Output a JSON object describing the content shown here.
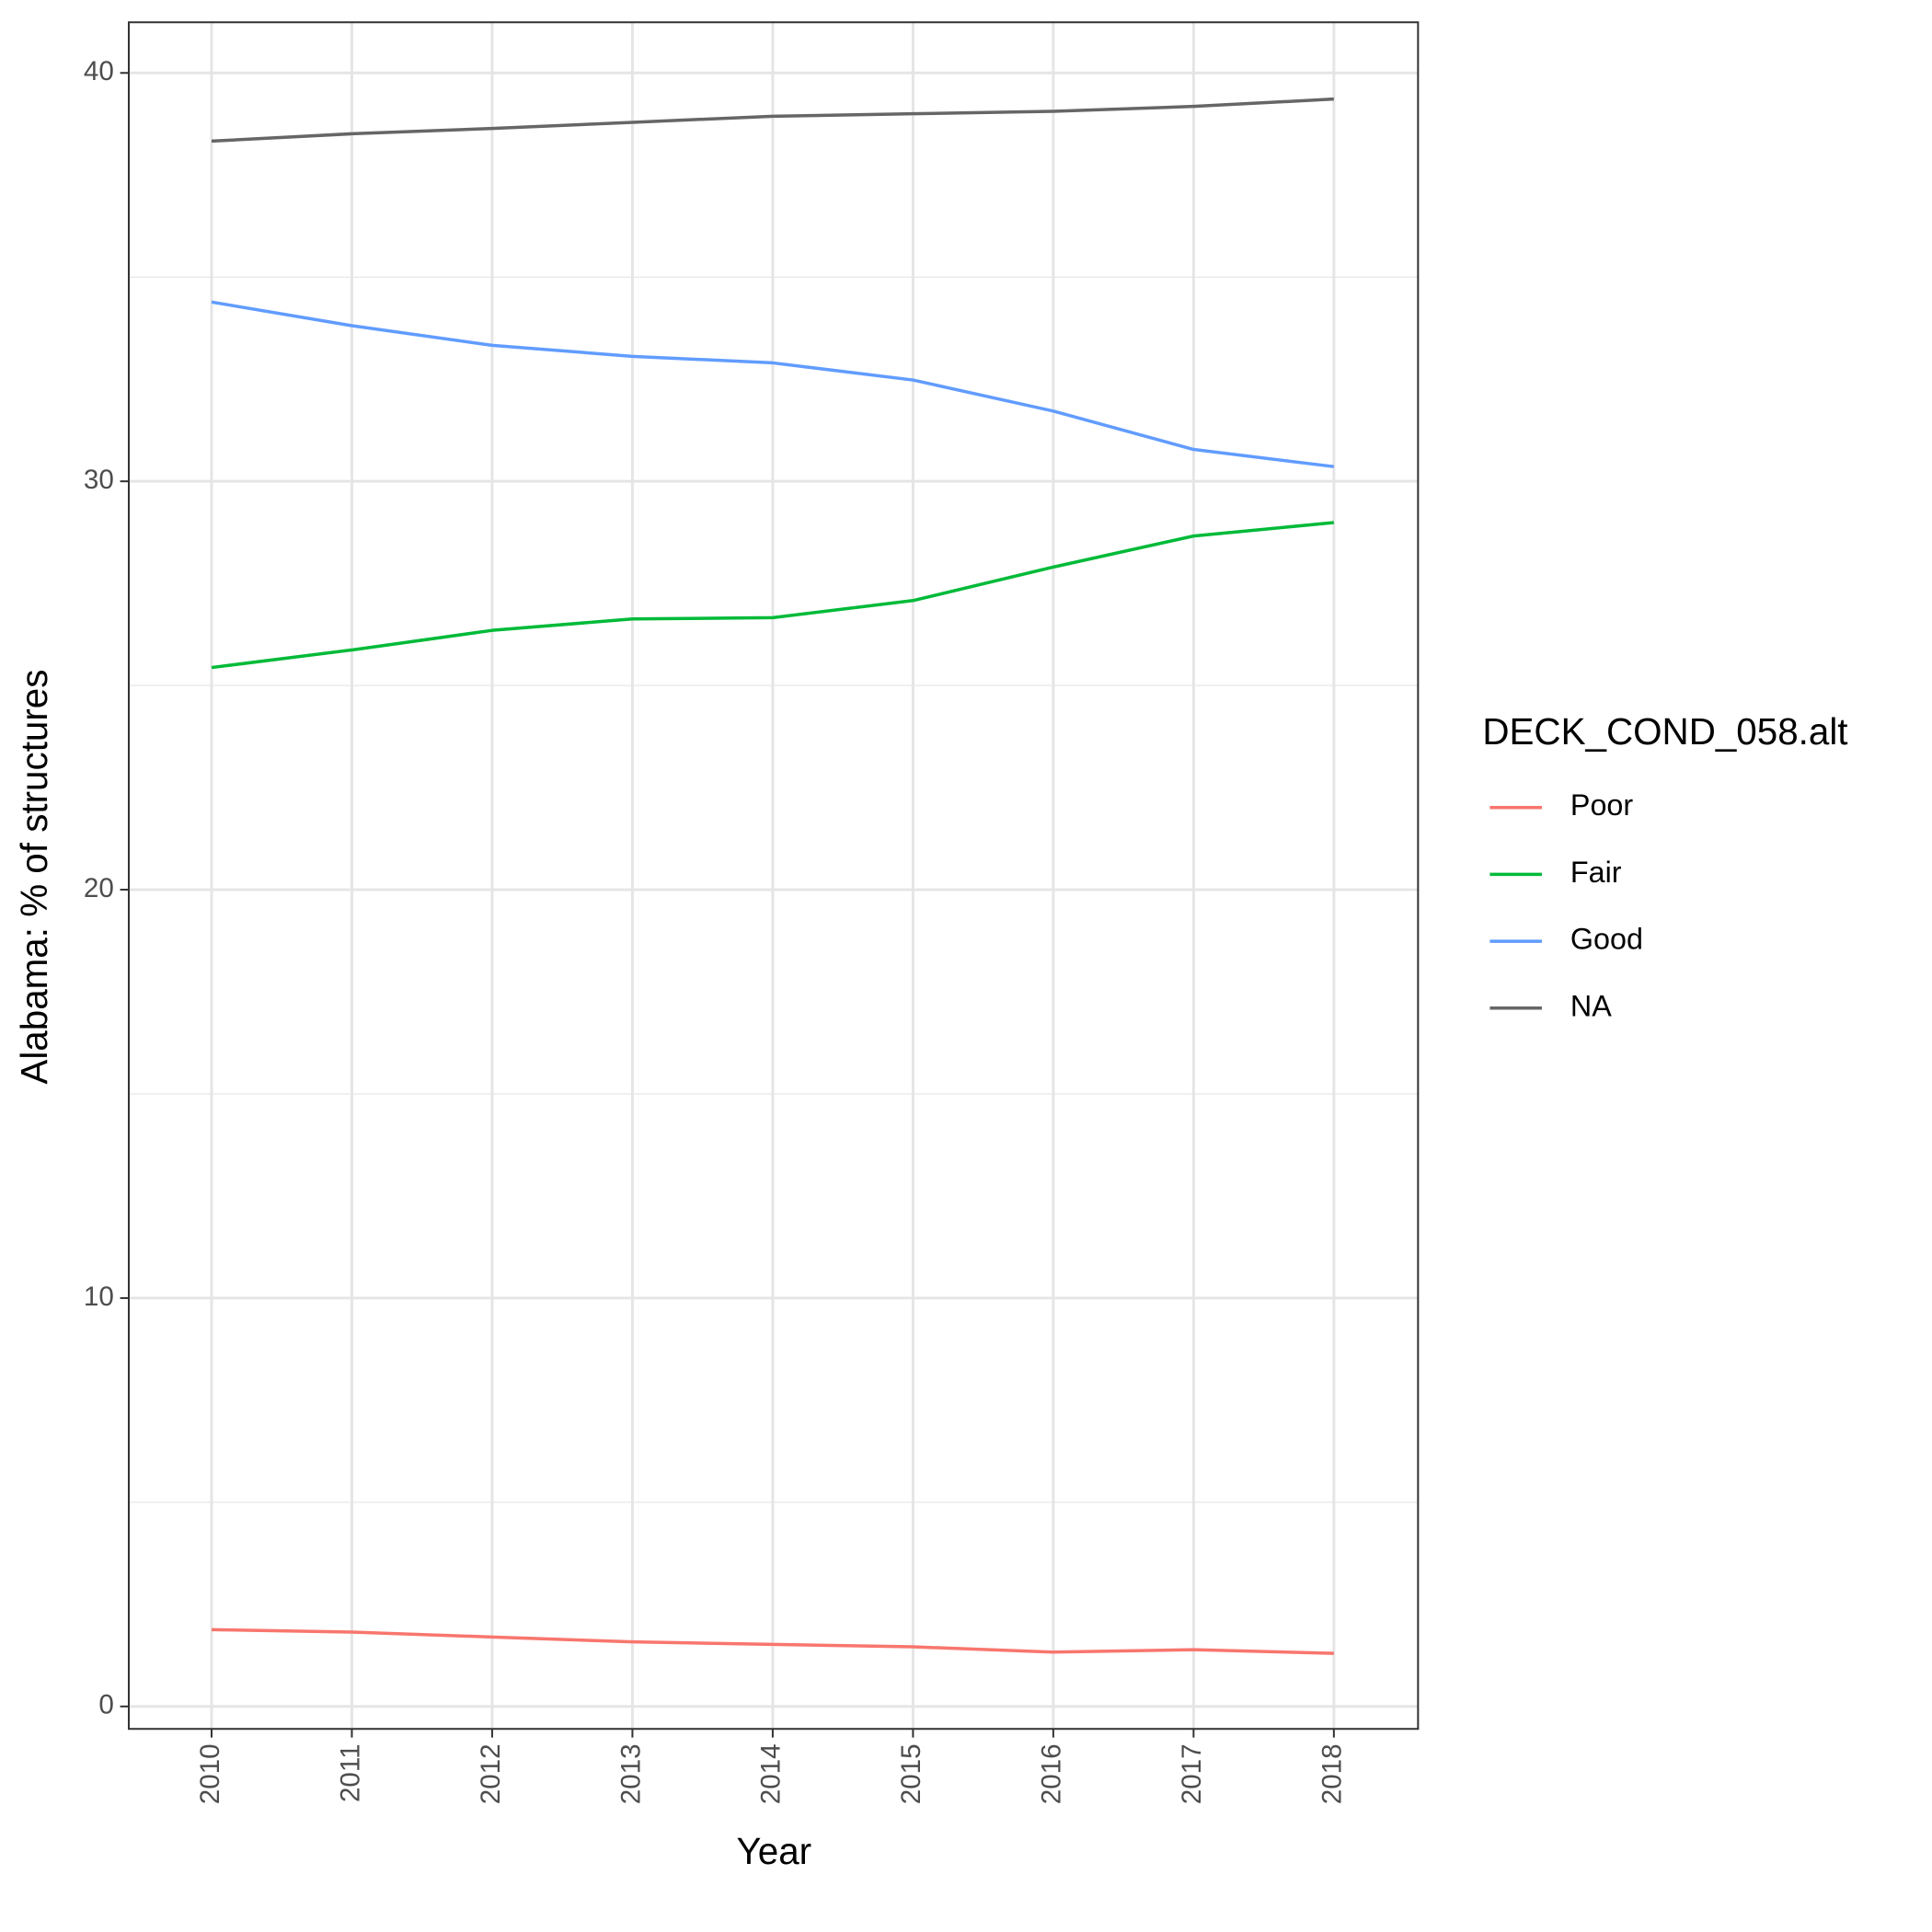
{
  "chart_data": {
    "type": "line",
    "x_label": "Year",
    "y_label": "Alabama: % of structures",
    "legend_title": "DECK_COND_058.alt",
    "legend_position": "right",
    "x": [
      2010,
      2011,
      2012,
      2013,
      2014,
      2015,
      2016,
      2017,
      2018
    ],
    "series": [
      {
        "name": "Poor",
        "color": "#F8766D",
        "values": [
          1.88,
          1.82,
          1.7,
          1.58,
          1.52,
          1.46,
          1.33,
          1.39,
          1.3
        ]
      },
      {
        "name": "Fair",
        "color": "#00BA38",
        "values": [
          25.44,
          25.87,
          26.35,
          26.63,
          26.66,
          27.08,
          27.9,
          28.66,
          28.99
        ]
      },
      {
        "name": "Good",
        "color": "#619CFF",
        "values": [
          34.39,
          33.81,
          33.33,
          33.06,
          32.9,
          32.48,
          31.72,
          30.78,
          30.36
        ]
      },
      {
        "name": "NA",
        "color": "#666666",
        "values": [
          38.33,
          38.51,
          38.64,
          38.79,
          38.94,
          39.0,
          39.06,
          39.18,
          39.36
        ]
      }
    ],
    "xlim": [
      2009.41,
      2018.6
    ],
    "xticks": [
      2010,
      2011,
      2012,
      2013,
      2014,
      2015,
      2016,
      2017,
      2018
    ],
    "ylim": [
      -0.55,
      41.24
    ],
    "yticks": [
      0,
      10,
      20,
      30,
      40
    ],
    "y_minor_grid": [
      5,
      15,
      25,
      35
    ],
    "grid": true
  }
}
